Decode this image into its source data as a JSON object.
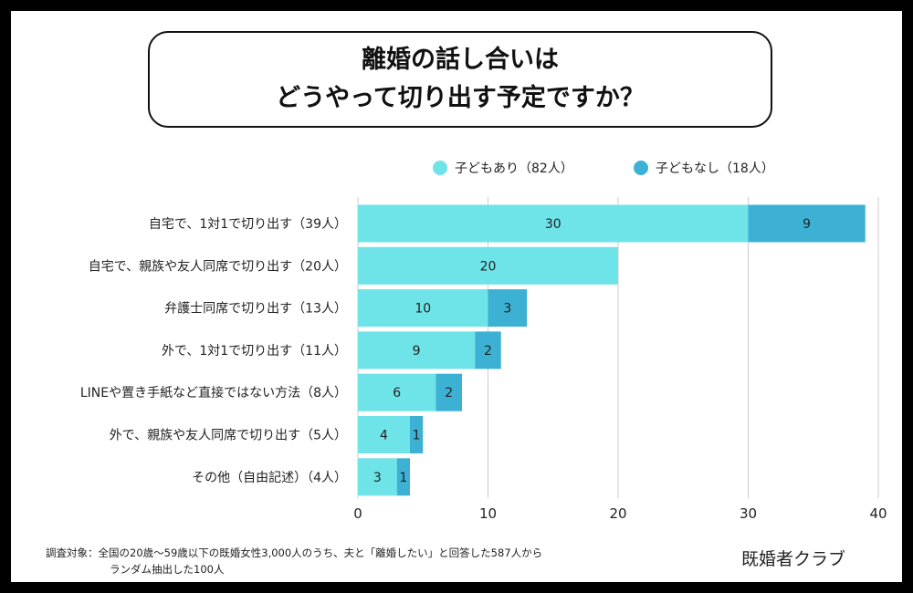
{
  "title": {
    "line1": "離婚の話し合いは",
    "line2": "どうやって切り出す予定ですか？"
  },
  "colors": {
    "series1": "#6ee3e8",
    "series2": "#3cb1d4",
    "grid": "#cccccc",
    "text": "#222222"
  },
  "chart_data": {
    "type": "bar",
    "orientation": "horizontal",
    "stacked": true,
    "categories": [
      "自宅で、1対1で切り出す（39人）",
      "自宅で、親族や友人同席で切り出す（20人）",
      "弁護士同席で切り出す（13人）",
      "外で、1対1で切り出す（11人）",
      "LINEや置き手紙など直接ではない方法（8人）",
      "外で、親族や友人同席で切り出す（5人）",
      "その他（自由記述）（4人）"
    ],
    "series": [
      {
        "name": "子どもあり（82人）",
        "values": [
          30,
          20,
          10,
          9,
          6,
          4,
          3
        ]
      },
      {
        "name": "子どもなし（18人）",
        "values": [
          9,
          0,
          3,
          2,
          2,
          1,
          1
        ]
      }
    ],
    "xlim": [
      0,
      40
    ],
    "xticks": [
      0,
      10,
      20,
      30,
      40
    ],
    "grid": true,
    "legend": "top-right"
  },
  "footnote": {
    "line1": "調査対象：全国の20歳〜59歳以下の既婚女性3,000人のうち、夫と「離婚したい」と回答した587人から",
    "line2": "ランダム抽出した100人"
  },
  "brand": "既婚者クラブ"
}
